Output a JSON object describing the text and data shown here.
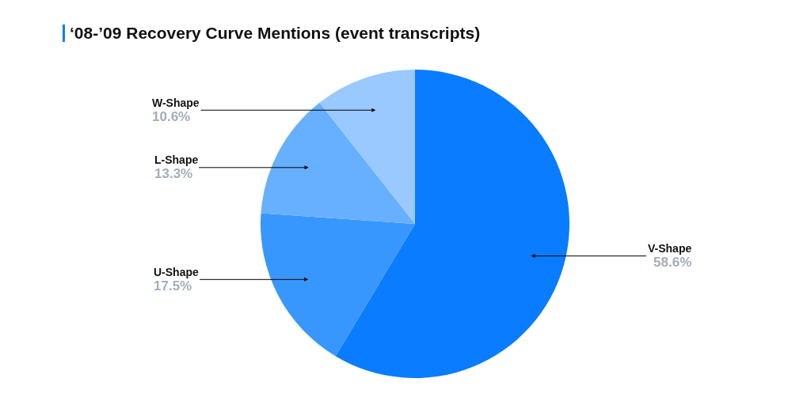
{
  "chart_data": {
    "type": "pie",
    "title": "‘08-’09 Recovery Curve Mentions (event transcripts)",
    "categories": [
      "V-Shape",
      "U-Shape",
      "L-Shape",
      "W-Shape"
    ],
    "values": [
      58.6,
      17.5,
      13.3,
      10.6
    ],
    "colors": [
      "#0a7cff",
      "#3897ff",
      "#66b0ff",
      "#99c9ff"
    ],
    "value_labels": [
      "58.6%",
      "17.5%",
      "13.3%",
      "10.6%"
    ]
  }
}
